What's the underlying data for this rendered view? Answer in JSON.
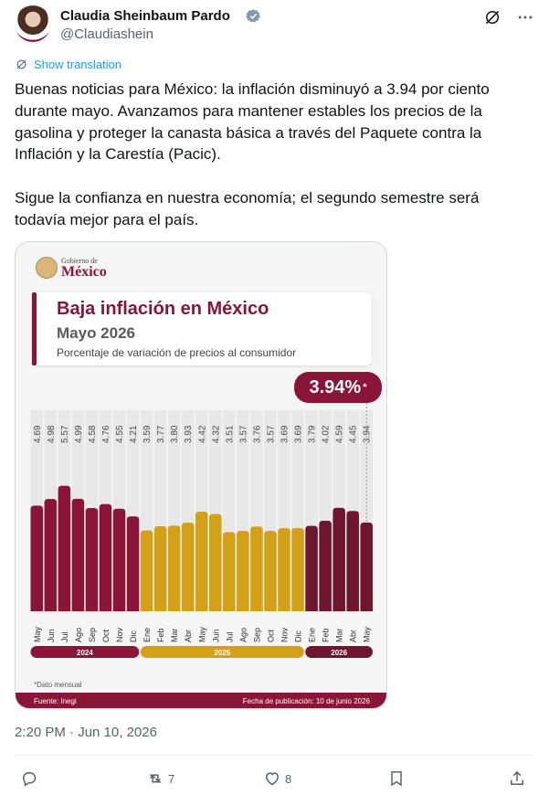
{
  "tweet": {
    "author_name": "Claudia Sheinbaum Pardo",
    "handle": "@Claudiashein",
    "translate_label": "Show translation",
    "paragraph1": "Buenas noticias para México: la inflación disminuyó a 3.94 por ciento durante mayo. Avanzamos para mantener estables los precios de la gasolina y proteger la canasta básica a través del Paquete contra la Inflación y la Carestía (Pacic).",
    "paragraph2": "Sigue la confianza en nuestra economía; el segundo semestre será todavía mejor para el país.",
    "timestamp": "2:20 PM · Jun 10, 2026",
    "retweets": "7",
    "likes": "8"
  },
  "card": {
    "logo_small": "Gobierno de",
    "logo_big": "México",
    "title": "Baja inflación en México",
    "subtitle": "Mayo 2026",
    "note": "Porcentaje de variación de precios al consumidor",
    "badge_value": "3.94%",
    "badge_mark": "*",
    "footnote": "*Dato mensual",
    "source": "Fuente: Inegi",
    "published": "Fecha de publicación: 10 de junio 2026"
  },
  "chart_data": {
    "type": "bar",
    "title": "Baja inflación en México",
    "subtitle": "Mayo 2026",
    "ylabel": "Porcentaje de variación de precios al consumidor",
    "categories": [
      "May",
      "Jun",
      "Jul",
      "Ago",
      "Sep",
      "Oct",
      "Nov",
      "Dic",
      "Ene",
      "Feb",
      "Mar",
      "Abr",
      "May",
      "Jun",
      "Jul",
      "Ago",
      "Sep",
      "Oct",
      "Nov",
      "Dic",
      "Ene",
      "Feb",
      "Mar",
      "Abr",
      "May"
    ],
    "value_labels": [
      "4.69",
      "4.98",
      "5.57",
      "4.99",
      "4.58",
      "4.76",
      "4.55",
      "4.21",
      "3.59",
      "3.77",
      "3.80",
      "3.93",
      "4.42",
      "4.32",
      "3.51",
      "3.57",
      "3.76",
      "3.57",
      "3.69",
      "3.69",
      "3.79",
      "4.02",
      "4.59",
      "4.45",
      "3.94"
    ],
    "values": [
      4.69,
      4.98,
      5.57,
      4.99,
      4.58,
      4.76,
      4.55,
      4.21,
      3.59,
      3.77,
      3.8,
      3.93,
      4.42,
      4.32,
      3.51,
      3.57,
      3.76,
      3.57,
      3.69,
      3.69,
      3.79,
      4.02,
      4.59,
      4.45,
      3.94
    ],
    "year_groups": [
      {
        "label": "2024",
        "start": 0,
        "end": 7,
        "color": "#8a1538"
      },
      {
        "label": "2025",
        "start": 8,
        "end": 19,
        "color": "#d4a017"
      },
      {
        "label": "2026",
        "start": 20,
        "end": 24,
        "color": "#6e1630"
      }
    ],
    "colors": {
      "2024": "#8a1538",
      "2025": "#d4a017",
      "2026": "#6e1630",
      "latest": "#8a1538"
    },
    "ylim": [
      0,
      6
    ]
  }
}
